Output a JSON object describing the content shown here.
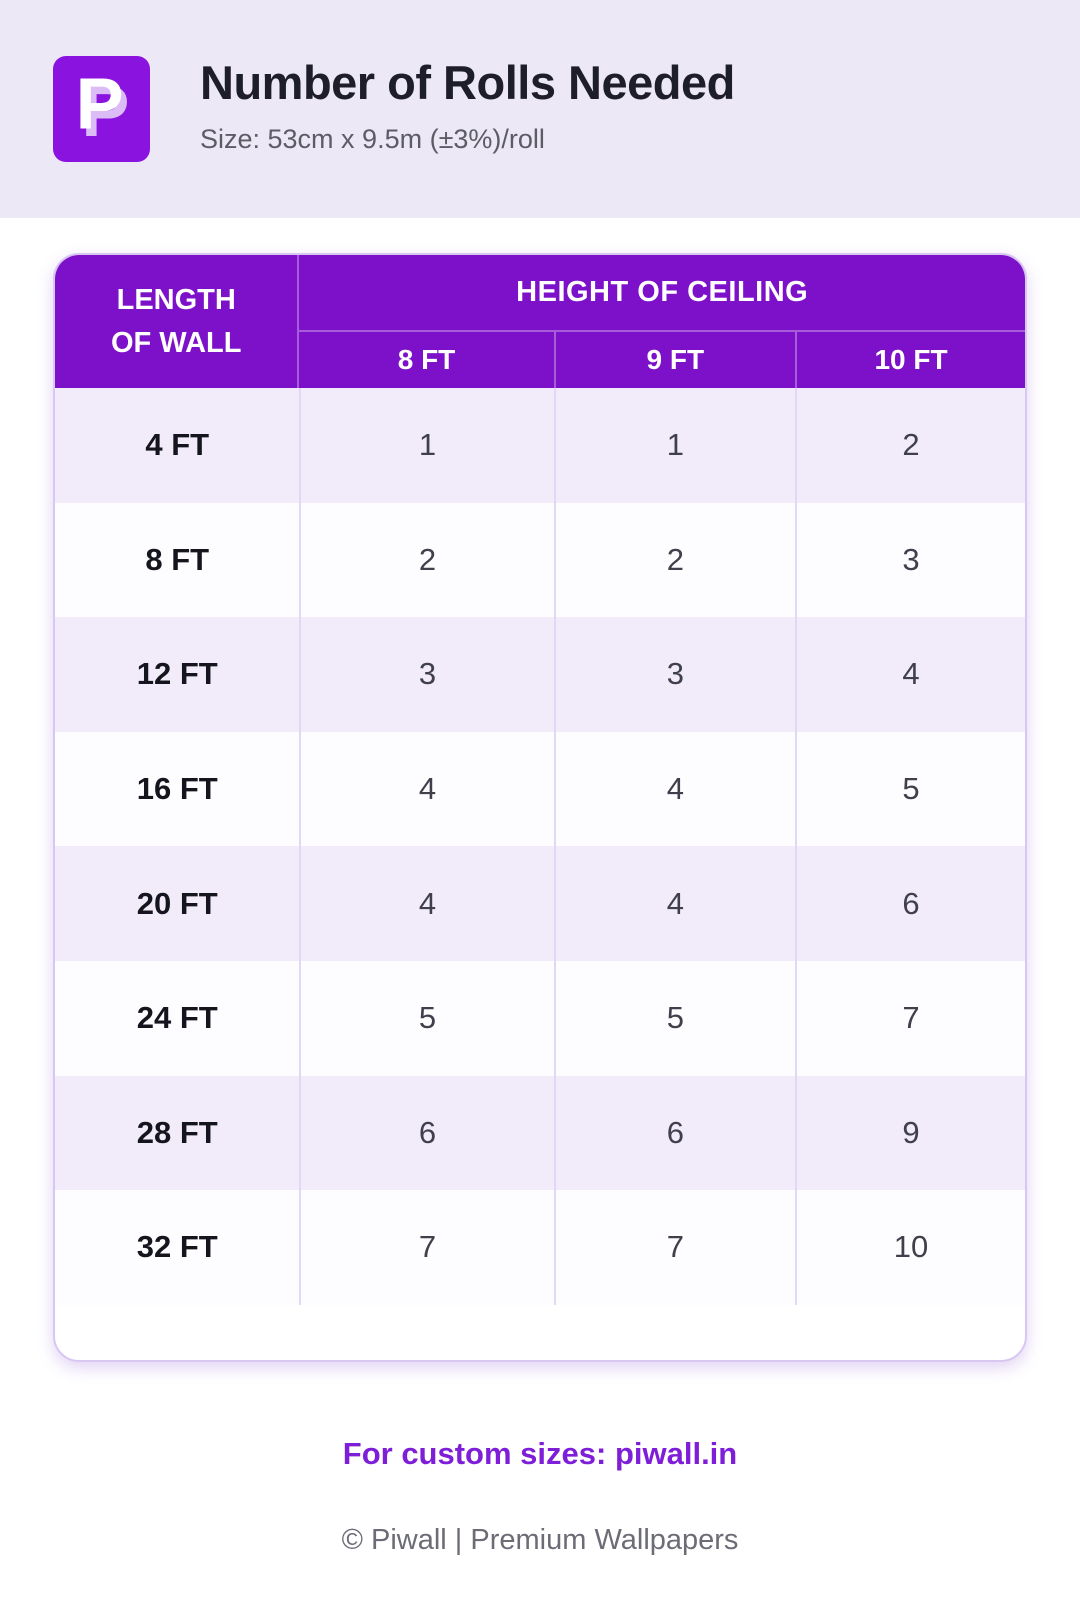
{
  "header": {
    "logo": {
      "letter": "P",
      "bg": "#8A13DF"
    },
    "title": "Number of Rolls Needed",
    "subtitle": "Size: 53cm x 9.5m (±3%)/roll"
  },
  "table": {
    "corner_label": "LENGTH OF WALL",
    "group_header": "HEIGHT OF CEILING",
    "col_headers": [
      "8 FT",
      "9 FT",
      "10 FT"
    ],
    "rows": [
      {
        "label": "4 FT",
        "values": [
          "1",
          "1",
          "2"
        ]
      },
      {
        "label": "8 FT",
        "values": [
          "2",
          "2",
          "3"
        ]
      },
      {
        "label": "12 FT",
        "values": [
          "3",
          "3",
          "4"
        ]
      },
      {
        "label": "16 FT",
        "values": [
          "4",
          "4",
          "5"
        ]
      },
      {
        "label": "20 FT",
        "values": [
          "4",
          "4",
          "6"
        ]
      },
      {
        "label": "24 FT",
        "values": [
          "5",
          "5",
          "7"
        ]
      },
      {
        "label": "28 FT",
        "values": [
          "6",
          "6",
          "9"
        ]
      },
      {
        "label": "32 FT",
        "values": [
          "7",
          "7",
          "10"
        ]
      }
    ]
  },
  "footer": {
    "custom_sizes": "For custom sizes: piwall.in",
    "copyright": "© Piwall | Premium Wallpapers"
  },
  "colors": {
    "header_bg": "#7D11C9",
    "logo_bg": "#8A13DF",
    "row_alt": "#F2ECFA",
    "row_base": "#FDFDFF",
    "divider": "#E3D7F6",
    "card_border": "#D8C6F3",
    "link_color": "#7E1ED8"
  },
  "chart_data": {
    "type": "table",
    "title": "Number of Rolls Needed",
    "subtitle": "Size: 53cm x 9.5m (±3%)/roll",
    "row_header": "LENGTH OF WALL",
    "column_group": "HEIGHT OF CEILING",
    "columns": [
      "8 FT",
      "9 FT",
      "10 FT"
    ],
    "rows": [
      "4 FT",
      "8 FT",
      "12 FT",
      "16 FT",
      "20 FT",
      "24 FT",
      "28 FT",
      "32 FT"
    ],
    "values": [
      [
        1,
        1,
        2
      ],
      [
        2,
        2,
        3
      ],
      [
        3,
        3,
        4
      ],
      [
        4,
        4,
        5
      ],
      [
        4,
        4,
        6
      ],
      [
        5,
        5,
        7
      ],
      [
        6,
        6,
        9
      ],
      [
        7,
        7,
        10
      ]
    ]
  }
}
